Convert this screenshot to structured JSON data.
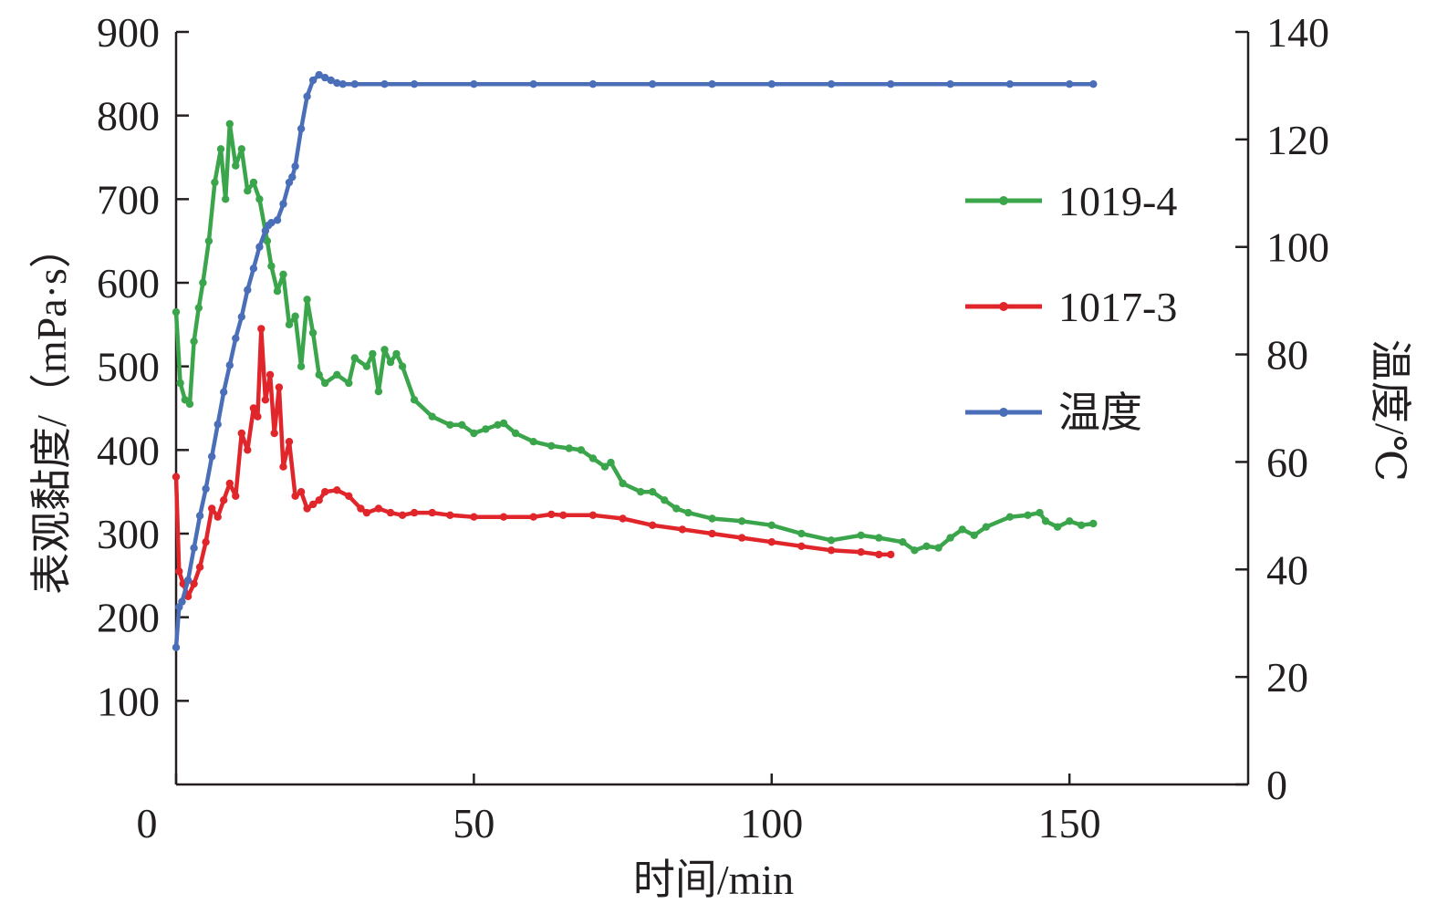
{
  "chart_data": {
    "type": "line",
    "xlabel": "时间/min",
    "ylabel_left": "表观黏度/（mPa·s）",
    "ylabel_right": "温度/℃",
    "xlim": [
      0,
      180
    ],
    "ylim_left": [
      0,
      900
    ],
    "ylim_right": [
      0,
      140
    ],
    "x_ticks": [
      0,
      50,
      100,
      150
    ],
    "y_ticks_left": [
      100,
      200,
      300,
      400,
      500,
      600,
      700,
      800,
      900
    ],
    "y_ticks_right": [
      0,
      20,
      40,
      60,
      80,
      100,
      120,
      140
    ],
    "grid": false,
    "legend_position": "right",
    "series": [
      {
        "name": "1019-4",
        "axis": "left",
        "color": "#3aa54a",
        "x": [
          0,
          0.7,
          1.5,
          2.3,
          3,
          3.8,
          4.5,
          5.5,
          6.5,
          7.5,
          8.3,
          9,
          10,
          11,
          12,
          13,
          14,
          15.3,
          16,
          17,
          18,
          19,
          20,
          21,
          22,
          23,
          24,
          25,
          27,
          29,
          30,
          32,
          33,
          34,
          35,
          36,
          37,
          38,
          40,
          43,
          46,
          48,
          50,
          52,
          54,
          55,
          57,
          60,
          63,
          66,
          68,
          70,
          72,
          73,
          75,
          78,
          80,
          82,
          84,
          86,
          90,
          95,
          100,
          105,
          110,
          115,
          118,
          122,
          124,
          126,
          128,
          130,
          132,
          134,
          136,
          140,
          143,
          145,
          146,
          148,
          150,
          152,
          154
        ],
        "values": [
          565,
          480,
          460,
          455,
          530,
          570,
          600,
          650,
          720,
          760,
          700,
          790,
          740,
          760,
          710,
          720,
          700,
          650,
          620,
          590,
          610,
          550,
          560,
          500,
          580,
          540,
          490,
          480,
          490,
          480,
          510,
          500,
          515,
          470,
          520,
          505,
          515,
          500,
          460,
          440,
          430,
          430,
          420,
          425,
          430,
          432,
          420,
          410,
          405,
          402,
          400,
          390,
          380,
          385,
          360,
          350,
          350,
          340,
          330,
          325,
          318,
          315,
          310,
          300,
          292,
          298,
          295,
          290,
          280,
          285,
          283,
          295,
          305,
          298,
          308,
          320,
          322,
          325,
          315,
          308,
          315,
          310,
          312
        ]
      },
      {
        "name": "1017-3",
        "axis": "left",
        "color": "#e0262a",
        "x": [
          0,
          0.5,
          1.2,
          2,
          3,
          4,
          5,
          6,
          7,
          8,
          9,
          10,
          11,
          12,
          13,
          13.7,
          14.3,
          15,
          15.8,
          16.5,
          17.3,
          18,
          19,
          20,
          21,
          22,
          23,
          24,
          25,
          27,
          29,
          31,
          32,
          34,
          36,
          38,
          40,
          43,
          46,
          50,
          55,
          60,
          63,
          65,
          70,
          75,
          80,
          85,
          90,
          95,
          100,
          105,
          110,
          115,
          118,
          120
        ],
        "values": [
          368,
          255,
          240,
          225,
          240,
          260,
          290,
          330,
          320,
          340,
          360,
          345,
          420,
          400,
          450,
          440,
          545,
          460,
          490,
          420,
          475,
          380,
          410,
          345,
          350,
          330,
          335,
          340,
          350,
          352,
          345,
          330,
          325,
          330,
          325,
          322,
          325,
          325,
          322,
          320,
          320,
          320,
          323,
          322,
          322,
          318,
          310,
          305,
          300,
          295,
          290,
          285,
          280,
          278,
          275,
          275
        ]
      },
      {
        "name": "温度",
        "axis": "right",
        "color": "#4a6eb8",
        "x": [
          0,
          0.5,
          1,
          2,
          3,
          4,
          5,
          6,
          7,
          8,
          9,
          10,
          11,
          12,
          13,
          14,
          15,
          15.5,
          16,
          17,
          18,
          19,
          19.5,
          20,
          21,
          22,
          23,
          24,
          25,
          26,
          27,
          28,
          30,
          35,
          40,
          50,
          60,
          70,
          80,
          90,
          100,
          110,
          120,
          130,
          140,
          150,
          154
        ],
        "values": [
          25.5,
          33,
          34,
          38,
          44,
          50,
          55,
          61,
          67,
          73,
          78,
          83,
          87,
          92,
          96,
          100,
          103,
          104,
          104.5,
          105,
          108,
          112,
          113,
          115,
          122,
          128,
          131,
          132,
          131.5,
          131,
          130.5,
          130.3,
          130.3,
          130.3,
          130.3,
          130.3,
          130.3,
          130.3,
          130.3,
          130.3,
          130.3,
          130.3,
          130.3,
          130.3,
          130.3,
          130.3,
          130.3
        ]
      }
    ]
  }
}
